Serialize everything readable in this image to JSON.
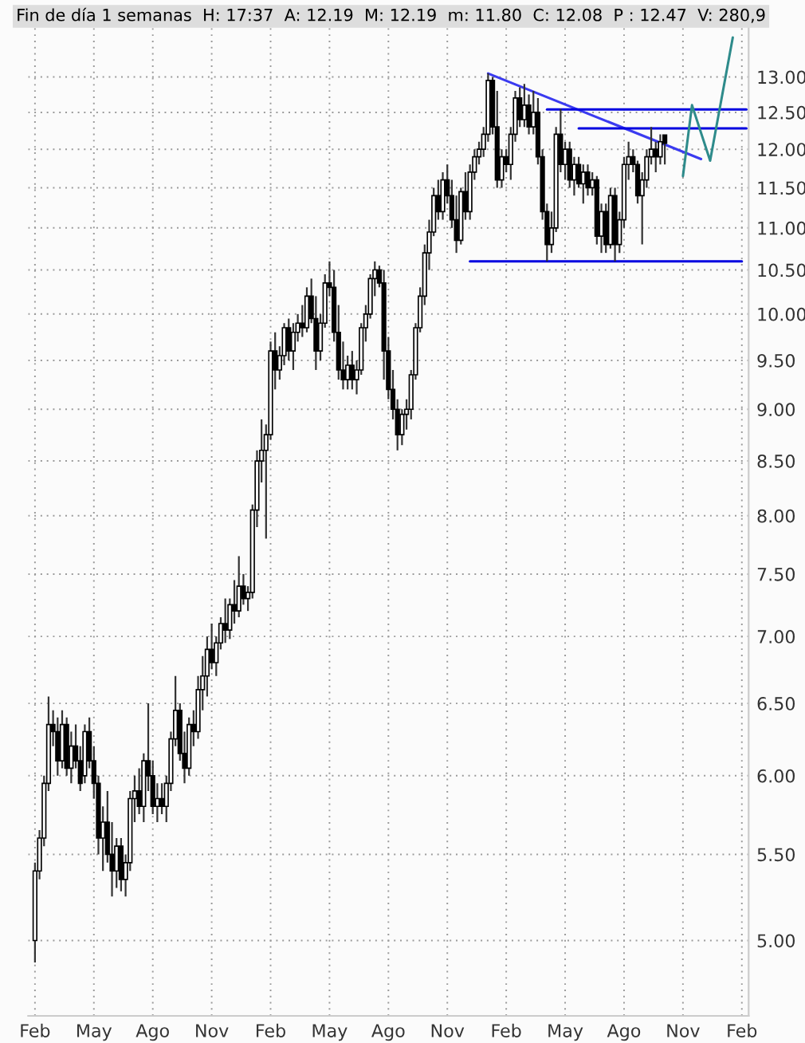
{
  "chart_data": {
    "type": "candlestick",
    "title": "Fin de día 1 semanas  H: 17:37  A: 12.19  M: 12.19  m: 11.80  C: 12.08  P : 12.47  V: 280,9",
    "categories": [
      "Feb",
      null,
      null,
      null,
      null,
      null,
      null,
      null,
      null,
      null,
      null,
      null,
      null,
      "May",
      null,
      null,
      null,
      null,
      null,
      null,
      null,
      null,
      null,
      null,
      null,
      null,
      "Ago",
      null,
      null,
      null,
      null,
      null,
      null,
      null,
      null,
      null,
      null,
      null,
      null,
      "Nov",
      null,
      null,
      null,
      null,
      null,
      null,
      null,
      null,
      null,
      null,
      null,
      null,
      "Feb",
      null,
      null,
      null,
      null,
      null,
      null,
      null,
      null,
      null,
      null,
      null,
      null,
      "May",
      null,
      null,
      null,
      null,
      null,
      null,
      null,
      null,
      null,
      null,
      null,
      null,
      "Ago",
      null,
      null,
      null,
      null,
      null,
      null,
      null,
      null,
      null,
      null,
      null,
      null,
      "Nov",
      null,
      null,
      null,
      null,
      null,
      null,
      null,
      null,
      null,
      null,
      null,
      null,
      "Feb",
      null,
      null,
      null,
      null,
      null,
      null,
      null,
      null,
      null,
      null,
      null,
      null,
      "May",
      null,
      null,
      null,
      null,
      null,
      null,
      null,
      null,
      null,
      null,
      null,
      null,
      "Ago",
      null,
      null,
      null,
      null,
      null,
      null,
      null,
      null,
      null,
      null,
      null,
      null,
      "Nov",
      null,
      null,
      null,
      null,
      null,
      null,
      null,
      null,
      null,
      null,
      null,
      null,
      "Feb",
      null
    ],
    "ohlc": [
      [
        5.0,
        5.45,
        4.88,
        5.4
      ],
      [
        5.4,
        5.65,
        5.35,
        5.6
      ],
      [
        5.6,
        6.0,
        5.55,
        5.95
      ],
      [
        5.95,
        6.55,
        5.9,
        6.35
      ],
      [
        6.35,
        6.45,
        6.2,
        6.3
      ],
      [
        6.3,
        6.4,
        6.0,
        6.1
      ],
      [
        6.1,
        6.45,
        6.05,
        6.35
      ],
      [
        6.35,
        6.4,
        6.0,
        6.05
      ],
      [
        6.05,
        6.3,
        5.95,
        6.2
      ],
      [
        6.2,
        6.35,
        6.05,
        6.1
      ],
      [
        6.1,
        6.2,
        5.9,
        5.95
      ],
      [
        6.0,
        6.35,
        5.95,
        6.3
      ],
      [
        6.3,
        6.4,
        6.05,
        6.1
      ],
      [
        6.1,
        6.2,
        5.85,
        5.95
      ],
      [
        5.95,
        6.0,
        5.5,
        5.6
      ],
      [
        5.6,
        5.8,
        5.4,
        5.7
      ],
      [
        5.7,
        5.9,
        5.45,
        5.5
      ],
      [
        5.5,
        5.7,
        5.25,
        5.4
      ],
      [
        5.4,
        5.6,
        5.3,
        5.55
      ],
      [
        5.55,
        5.6,
        5.28,
        5.35
      ],
      [
        5.35,
        5.5,
        5.25,
        5.45
      ],
      [
        5.45,
        5.9,
        5.4,
        5.85
      ],
      [
        5.85,
        6.0,
        5.7,
        5.9
      ],
      [
        5.9,
        6.05,
        5.75,
        5.8
      ],
      [
        5.8,
        6.15,
        5.7,
        6.1
      ],
      [
        6.1,
        6.5,
        5.9,
        6.0
      ],
      [
        6.0,
        6.1,
        5.75,
        5.8
      ],
      [
        5.8,
        5.95,
        5.7,
        5.85
      ],
      [
        5.85,
        5.95,
        5.75,
        5.8
      ],
      [
        5.8,
        6.0,
        5.7,
        5.95
      ],
      [
        5.95,
        6.3,
        5.9,
        6.25
      ],
      [
        6.25,
        6.7,
        6.2,
        6.45
      ],
      [
        6.45,
        6.5,
        6.1,
        6.15
      ],
      [
        6.15,
        6.3,
        5.95,
        6.05
      ],
      [
        6.05,
        6.4,
        6.0,
        6.35
      ],
      [
        6.35,
        6.45,
        6.2,
        6.3
      ],
      [
        6.3,
        6.7,
        6.25,
        6.6
      ],
      [
        6.6,
        6.85,
        6.45,
        6.7
      ],
      [
        6.7,
        7.0,
        6.55,
        6.9
      ],
      [
        6.9,
        7.1,
        6.75,
        6.8
      ],
      [
        6.8,
        7.0,
        6.7,
        6.95
      ],
      [
        6.95,
        7.15,
        6.9,
        7.1
      ],
      [
        7.1,
        7.3,
        6.95,
        7.05
      ],
      [
        7.05,
        7.3,
        6.98,
        7.25
      ],
      [
        7.25,
        7.45,
        7.1,
        7.2
      ],
      [
        7.2,
        7.65,
        7.15,
        7.4
      ],
      [
        7.4,
        7.5,
        7.25,
        7.3
      ],
      [
        7.3,
        7.4,
        7.2,
        7.35
      ],
      [
        7.35,
        8.1,
        7.3,
        8.05
      ],
      [
        8.05,
        8.6,
        7.9,
        8.5
      ],
      [
        8.5,
        8.9,
        8.3,
        8.6
      ],
      [
        8.6,
        8.85,
        7.8,
        8.75
      ],
      [
        8.75,
        9.7,
        8.7,
        9.6
      ],
      [
        9.6,
        9.8,
        9.2,
        9.4
      ],
      [
        9.4,
        9.65,
        9.3,
        9.55
      ],
      [
        9.55,
        9.9,
        9.45,
        9.85
      ],
      [
        9.85,
        9.95,
        9.5,
        9.6
      ],
      [
        9.6,
        9.9,
        9.4,
        9.8
      ],
      [
        9.8,
        10.0,
        9.7,
        9.9
      ],
      [
        9.9,
        10.1,
        9.75,
        9.85
      ],
      [
        9.85,
        10.3,
        9.8,
        10.2
      ],
      [
        10.2,
        10.4,
        9.9,
        9.95
      ],
      [
        9.95,
        10.2,
        9.4,
        9.6
      ],
      [
        9.6,
        10.0,
        9.5,
        9.9
      ],
      [
        9.9,
        10.45,
        9.85,
        10.35
      ],
      [
        10.35,
        10.6,
        10.2,
        10.3
      ],
      [
        10.3,
        10.5,
        9.7,
        9.8
      ],
      [
        9.8,
        10.1,
        9.3,
        9.4
      ],
      [
        9.4,
        9.7,
        9.2,
        9.3
      ],
      [
        9.3,
        9.55,
        9.2,
        9.45
      ],
      [
        9.45,
        9.6,
        9.2,
        9.3
      ],
      [
        9.3,
        9.5,
        9.15,
        9.4
      ],
      [
        9.4,
        9.9,
        9.35,
        9.85
      ],
      [
        9.85,
        10.1,
        9.7,
        10.0
      ],
      [
        10.0,
        10.45,
        9.95,
        10.4
      ],
      [
        10.4,
        10.6,
        10.2,
        10.5
      ],
      [
        10.5,
        10.55,
        10.3,
        10.35
      ],
      [
        10.35,
        10.5,
        9.3,
        9.6
      ],
      [
        9.6,
        9.75,
        9.1,
        9.2
      ],
      [
        9.2,
        9.4,
        8.9,
        9.0
      ],
      [
        9.0,
        9.1,
        8.6,
        8.75
      ],
      [
        8.75,
        9.0,
        8.65,
        8.95
      ],
      [
        8.95,
        9.1,
        8.8,
        9.0
      ],
      [
        9.0,
        9.4,
        8.9,
        9.35
      ],
      [
        9.35,
        9.9,
        9.3,
        9.85
      ],
      [
        9.85,
        10.3,
        9.8,
        10.2
      ],
      [
        10.2,
        10.8,
        10.1,
        10.7
      ],
      [
        10.7,
        11.1,
        10.5,
        10.95
      ],
      [
        10.95,
        11.5,
        10.9,
        11.4
      ],
      [
        11.4,
        11.6,
        11.1,
        11.2
      ],
      [
        11.2,
        11.7,
        11.1,
        11.6
      ],
      [
        11.6,
        11.8,
        11.3,
        11.4
      ],
      [
        11.4,
        11.6,
        11.0,
        11.1
      ],
      [
        11.1,
        11.4,
        10.7,
        10.85
      ],
      [
        10.85,
        11.5,
        10.8,
        11.45
      ],
      [
        11.45,
        11.7,
        11.1,
        11.2
      ],
      [
        11.2,
        11.8,
        11.1,
        11.7
      ],
      [
        11.7,
        12.0,
        11.6,
        11.9
      ],
      [
        11.9,
        12.1,
        11.8,
        12.0
      ],
      [
        12.0,
        12.3,
        11.9,
        12.2
      ],
      [
        12.2,
        13.05,
        12.1,
        12.95
      ],
      [
        12.95,
        13.0,
        12.2,
        12.3
      ],
      [
        12.3,
        12.8,
        11.5,
        11.6
      ],
      [
        11.6,
        12.0,
        11.5,
        11.9
      ],
      [
        11.9,
        12.0,
        11.7,
        11.8
      ],
      [
        11.8,
        12.3,
        11.6,
        12.2
      ],
      [
        12.2,
        12.8,
        12.1,
        12.7
      ],
      [
        12.7,
        12.85,
        12.3,
        12.4
      ],
      [
        12.4,
        12.9,
        12.3,
        12.6
      ],
      [
        12.6,
        12.75,
        12.2,
        12.3
      ],
      [
        12.3,
        12.8,
        12.2,
        12.5
      ],
      [
        12.5,
        12.7,
        11.8,
        11.9
      ],
      [
        11.9,
        12.0,
        11.1,
        11.2
      ],
      [
        11.2,
        11.3,
        10.6,
        10.8
      ],
      [
        10.8,
        11.2,
        10.7,
        11.0
      ],
      [
        11.0,
        12.3,
        10.95,
        12.2
      ],
      [
        12.2,
        12.55,
        11.7,
        11.8
      ],
      [
        11.8,
        12.1,
        11.6,
        12.0
      ],
      [
        12.0,
        12.1,
        11.5,
        11.6
      ],
      [
        11.6,
        11.9,
        11.4,
        11.8
      ],
      [
        11.8,
        11.9,
        11.5,
        11.55
      ],
      [
        11.55,
        11.8,
        11.3,
        11.7
      ],
      [
        11.7,
        11.8,
        11.4,
        11.5
      ],
      [
        11.5,
        11.7,
        11.4,
        11.6
      ],
      [
        11.6,
        11.65,
        10.8,
        10.9
      ],
      [
        10.9,
        11.3,
        10.7,
        11.2
      ],
      [
        11.2,
        11.3,
        10.7,
        10.8
      ],
      [
        10.8,
        11.5,
        10.75,
        11.4
      ],
      [
        11.4,
        11.5,
        10.6,
        10.8
      ],
      [
        10.8,
        11.2,
        10.7,
        11.1
      ],
      [
        11.1,
        11.9,
        11.0,
        11.8
      ],
      [
        11.8,
        12.1,
        11.6,
        11.9
      ],
      [
        11.9,
        12.0,
        11.7,
        11.8
      ],
      [
        11.8,
        11.85,
        11.3,
        11.4
      ],
      [
        11.4,
        11.7,
        10.8,
        11.6
      ],
      [
        11.6,
        12.0,
        11.5,
        11.9
      ],
      [
        11.9,
        12.3,
        11.8,
        12.0
      ],
      [
        12.0,
        12.1,
        11.7,
        11.9
      ],
      [
        11.9,
        12.2,
        11.8,
        12.1
      ],
      [
        12.19,
        12.19,
        11.8,
        12.08
      ],
      null,
      null,
      null,
      null,
      null,
      null,
      null,
      null,
      null,
      null,
      null,
      null,
      null,
      null,
      null,
      null,
      null,
      null
    ],
    "series": [
      {
        "type": "line",
        "color": "#3b3bf0",
        "values": [
          null,
          null,
          null,
          null,
          null,
          null,
          null,
          null,
          null,
          null,
          null,
          null,
          null,
          null,
          null,
          null,
          null,
          null,
          null,
          null,
          null,
          null,
          null,
          null,
          null,
          null,
          null,
          null,
          null,
          null,
          null,
          null,
          null,
          null,
          null,
          null,
          null,
          null,
          null,
          null,
          null,
          null,
          null,
          null,
          null,
          null,
          null,
          null,
          null,
          null,
          null,
          null,
          null,
          null,
          null,
          null,
          null,
          null,
          null,
          null,
          null,
          null,
          null,
          null,
          null,
          null,
          null,
          null,
          null,
          null,
          null,
          null,
          null,
          null,
          null,
          null,
          null,
          null,
          null,
          null,
          null,
          null,
          null,
          null,
          null,
          null,
          null,
          null,
          null,
          null,
          null,
          null,
          null,
          null,
          null,
          null,
          null,
          null,
          null,
          null,
          13.05,
          null,
          null,
          null,
          null,
          null,
          null,
          null,
          null,
          null,
          null,
          null,
          null,
          null,
          null,
          null,
          null,
          null,
          null,
          null,
          null,
          null,
          null,
          null,
          null,
          null,
          null,
          null,
          null,
          null,
          null,
          null,
          null,
          null,
          null,
          null,
          null,
          null,
          null,
          null,
          null,
          null,
          null,
          null,
          null,
          null,
          null,
          11.87,
          null,
          null,
          null,
          null,
          null,
          null,
          null,
          null,
          null,
          null
        ]
      },
      {
        "type": "line",
        "color": "#0000e0",
        "values": [
          null,
          null,
          null,
          null,
          null,
          null,
          null,
          null,
          null,
          null,
          null,
          null,
          null,
          null,
          null,
          null,
          null,
          null,
          null,
          null,
          null,
          null,
          null,
          null,
          null,
          null,
          null,
          null,
          null,
          null,
          null,
          null,
          null,
          null,
          null,
          null,
          null,
          null,
          null,
          null,
          null,
          null,
          null,
          null,
          null,
          null,
          null,
          null,
          null,
          null,
          null,
          null,
          null,
          null,
          null,
          null,
          null,
          null,
          null,
          null,
          null,
          null,
          null,
          null,
          null,
          null,
          null,
          null,
          null,
          null,
          null,
          null,
          null,
          null,
          null,
          null,
          null,
          null,
          null,
          null,
          null,
          null,
          null,
          null,
          null,
          null,
          null,
          null,
          null,
          null,
          null,
          null,
          null,
          null,
          null,
          null,
          null,
          null,
          null,
          null,
          null,
          null,
          null,
          null,
          null,
          null,
          null,
          null,
          null,
          null,
          null,
          null,
          null,
          12.54,
          null,
          null,
          null,
          null,
          null,
          null,
          null,
          null,
          null,
          null,
          null,
          null,
          null,
          null,
          null,
          null,
          null,
          null,
          null,
          null,
          null,
          null,
          null,
          null,
          null,
          null,
          null,
          null,
          null,
          null,
          null,
          null,
          null,
          null,
          null,
          null,
          null,
          null,
          null,
          null,
          null,
          null,
          null,
          12.54
        ]
      },
      {
        "type": "line",
        "color": "#0000e0",
        "values": [
          null,
          null,
          null,
          null,
          null,
          null,
          null,
          null,
          null,
          null,
          null,
          null,
          null,
          null,
          null,
          null,
          null,
          null,
          null,
          null,
          null,
          null,
          null,
          null,
          null,
          null,
          null,
          null,
          null,
          null,
          null,
          null,
          null,
          null,
          null,
          null,
          null,
          null,
          null,
          null,
          null,
          null,
          null,
          null,
          null,
          null,
          null,
          null,
          null,
          null,
          null,
          null,
          null,
          null,
          null,
          null,
          null,
          null,
          null,
          null,
          null,
          null,
          null,
          null,
          null,
          null,
          null,
          null,
          null,
          null,
          null,
          null,
          null,
          null,
          null,
          null,
          null,
          null,
          null,
          null,
          null,
          null,
          null,
          null,
          null,
          null,
          null,
          null,
          null,
          null,
          null,
          null,
          null,
          null,
          null,
          null,
          null,
          null,
          null,
          null,
          null,
          null,
          null,
          null,
          null,
          null,
          null,
          null,
          null,
          null,
          null,
          null,
          null,
          null,
          null,
          null,
          null,
          null,
          null,
          null,
          12.28,
          null,
          null,
          null,
          null,
          null,
          null,
          null,
          null,
          null,
          null,
          null,
          null,
          null,
          null,
          null,
          null,
          null,
          null,
          null,
          null,
          null,
          null,
          null,
          null,
          null,
          null,
          null,
          null,
          null,
          null,
          null,
          null,
          null,
          null,
          null,
          null,
          12.28
        ]
      },
      {
        "type": "line",
        "color": "#0000e0",
        "values": [
          null,
          null,
          null,
          null,
          null,
          null,
          null,
          null,
          null,
          null,
          null,
          null,
          null,
          null,
          null,
          null,
          null,
          null,
          null,
          null,
          null,
          null,
          null,
          null,
          null,
          null,
          null,
          null,
          null,
          null,
          null,
          null,
          null,
          null,
          null,
          null,
          null,
          null,
          null,
          null,
          null,
          null,
          null,
          null,
          null,
          null,
          null,
          null,
          null,
          null,
          null,
          null,
          null,
          null,
          null,
          null,
          null,
          null,
          null,
          null,
          null,
          null,
          null,
          null,
          null,
          null,
          null,
          null,
          null,
          null,
          null,
          null,
          null,
          null,
          null,
          null,
          null,
          null,
          null,
          null,
          null,
          null,
          null,
          null,
          null,
          null,
          null,
          null,
          null,
          null,
          null,
          null,
          null,
          null,
          null,
          null,
          10.6,
          null,
          null,
          null,
          null,
          null,
          null,
          null,
          null,
          null,
          null,
          null,
          null,
          null,
          null,
          null,
          null,
          null,
          null,
          null,
          null,
          null,
          null,
          null,
          null,
          null,
          null,
          null,
          null,
          null,
          null,
          null,
          null,
          null,
          null,
          null,
          null,
          null,
          null,
          null,
          null,
          null,
          null,
          null,
          null,
          null,
          null,
          null,
          null,
          null,
          null,
          null,
          null,
          null,
          null,
          null,
          null,
          null,
          null,
          null,
          10.6,
          null
        ]
      },
      {
        "type": "line",
        "color": "#2e8b8b",
        "values": [
          null,
          null,
          null,
          null,
          null,
          null,
          null,
          null,
          null,
          null,
          null,
          null,
          null,
          null,
          null,
          null,
          null,
          null,
          null,
          null,
          null,
          null,
          null,
          null,
          null,
          null,
          null,
          null,
          null,
          null,
          null,
          null,
          null,
          null,
          null,
          null,
          null,
          null,
          null,
          null,
          null,
          null,
          null,
          null,
          null,
          null,
          null,
          null,
          null,
          null,
          null,
          null,
          null,
          null,
          null,
          null,
          null,
          null,
          null,
          null,
          null,
          null,
          null,
          null,
          null,
          null,
          null,
          null,
          null,
          null,
          null,
          null,
          null,
          null,
          null,
          null,
          null,
          null,
          null,
          null,
          null,
          null,
          null,
          null,
          null,
          null,
          null,
          null,
          null,
          null,
          null,
          null,
          null,
          null,
          null,
          null,
          null,
          null,
          null,
          null,
          null,
          null,
          null,
          null,
          null,
          null,
          null,
          null,
          null,
          null,
          null,
          null,
          null,
          null,
          null,
          null,
          null,
          null,
          null,
          null,
          null,
          null,
          null,
          null,
          null,
          null,
          null,
          null,
          null,
          null,
          null,
          null,
          null,
          null,
          null,
          null,
          null,
          null,
          null,
          null,
          null,
          null,
          null,
          11.65,
          null,
          12.6,
          null,
          null,
          null,
          11.85,
          null,
          null,
          null,
          null,
          13.58,
          null,
          null,
          null
        ]
      }
    ],
    "log": "y",
    "ylim": [
      4.6,
      13.8
    ],
    "yticks": [
      {
        "value": 5,
        "label": "5.00"
      },
      {
        "value": 5.5,
        "label": "5.50"
      },
      {
        "value": 6,
        "label": "6.00"
      },
      {
        "value": 6.5,
        "label": "6.50"
      },
      {
        "value": 7,
        "label": "7.00"
      },
      {
        "value": 7.5,
        "label": "7.50"
      },
      {
        "value": 8,
        "label": "8.00"
      },
      {
        "value": 8.5,
        "label": "8.50"
      },
      {
        "value": 9,
        "label": "9.00"
      },
      {
        "value": 9.5,
        "label": "9.50"
      },
      {
        "value": 10,
        "label": "10.00"
      },
      {
        "value": 10.5,
        "label": "10.50"
      },
      {
        "value": 11,
        "label": "11.00"
      },
      {
        "value": 11.5,
        "label": "11.50"
      },
      {
        "value": 12,
        "label": "12.00"
      },
      {
        "value": 12.5,
        "label": "12.50"
      },
      {
        "value": 13,
        "label": "13.00"
      }
    ],
    "grid": true
  }
}
